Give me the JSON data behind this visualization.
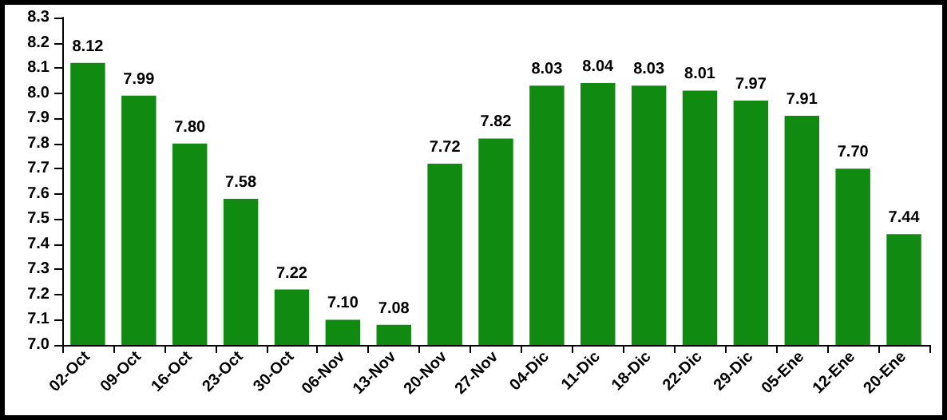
{
  "chart_data": {
    "type": "bar",
    "categories": [
      "02-Oct",
      "09-Oct",
      "16-Oct",
      "23-Oct",
      "30-Oct",
      "06-Nov",
      "13-Nov",
      "20-Nov",
      "27-Nov",
      "04-Dic",
      "11-Dic",
      "18-Dic",
      "22-Dic",
      "29-Dic",
      "05-Ene",
      "12-Ene",
      "20-Ene"
    ],
    "values": [
      8.12,
      7.99,
      7.8,
      7.58,
      7.22,
      7.1,
      7.08,
      7.72,
      7.82,
      8.03,
      8.04,
      8.03,
      8.01,
      7.97,
      7.91,
      7.7,
      7.44
    ],
    "value_labels": [
      "8.12",
      "7.99",
      "7.80",
      "7.58",
      "7.22",
      "7.10",
      "7.08",
      "7.72",
      "7.82",
      "8.03",
      "8.04",
      "8.03",
      "8.01",
      "7.97",
      "7.91",
      "7.70",
      "7.44"
    ],
    "color": "#108a10",
    "ylim": [
      7.0,
      8.3
    ],
    "yticks": [
      {
        "value": 7,
        "label": "7.0"
      },
      7.1,
      7.2,
      7.3,
      7.4,
      7.5,
      7.6,
      7.7,
      7.8,
      7.9,
      {
        "value": 8,
        "label": "8.0"
      },
      8.1,
      8.2,
      8.3
    ],
    "grid": false
  }
}
